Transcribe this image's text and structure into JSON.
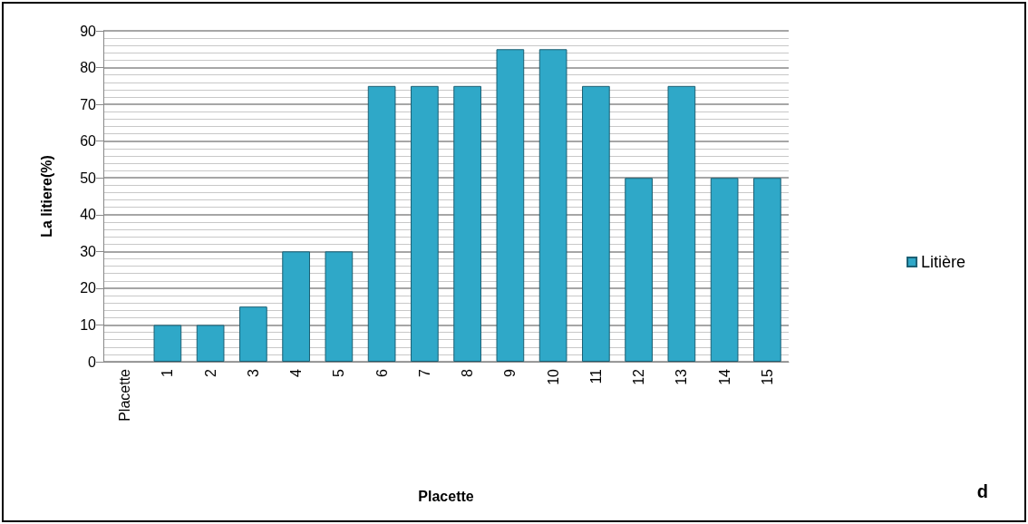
{
  "chart_data": {
    "type": "bar",
    "xlabel": "Placette",
    "ylabel": "La litiere(%)",
    "categories": [
      "Placette",
      "1",
      "2",
      "3",
      "4",
      "5",
      "6",
      "7",
      "8",
      "9",
      "10",
      "11",
      "12",
      "13",
      "14",
      "15"
    ],
    "series": [
      {
        "name": "Litière",
        "color": "#2fa8c8",
        "values": [
          null,
          10,
          10,
          15,
          30,
          30,
          75,
          75,
          75,
          85,
          85,
          75,
          50,
          75,
          50,
          50
        ]
      }
    ],
    "ylim": [
      0,
      90
    ],
    "yticks": [
      0,
      10,
      20,
      30,
      40,
      50,
      60,
      70,
      80,
      90
    ],
    "grid": "y",
    "legend": "right",
    "annotations": [
      "d"
    ]
  }
}
